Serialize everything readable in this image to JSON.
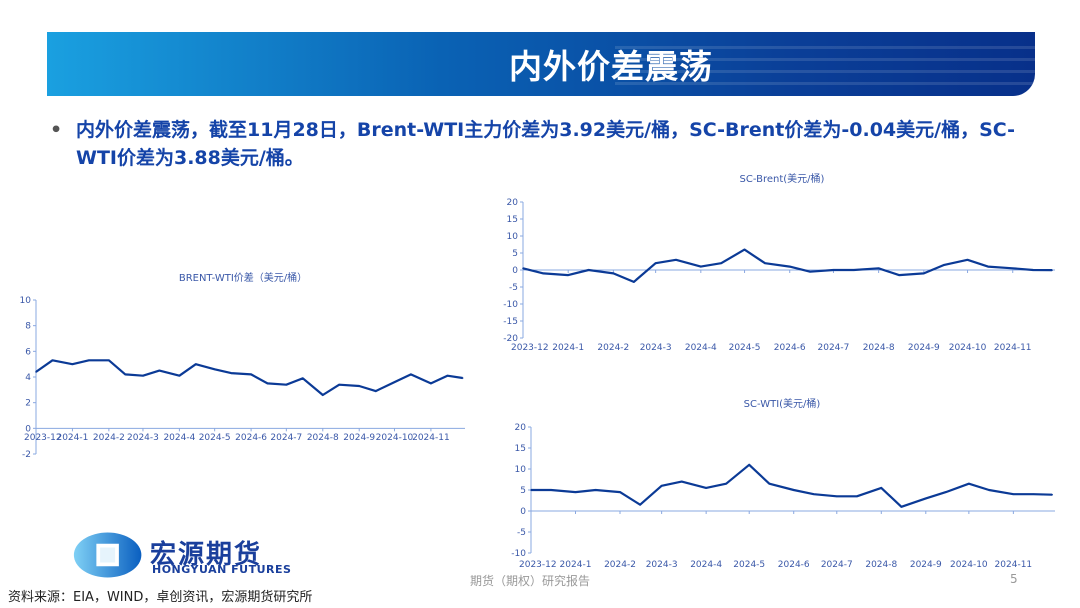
{
  "header": {
    "title": "内外价差震荡"
  },
  "bullet": {
    "text": "内外价差震荡，截至11月28日，Brent-WTI主力价差为3.92美元/桶，SC-Brent价差为-0.04美元/桶，SC-WTI价差为3.88美元/桶。"
  },
  "logo": {
    "name": "宏源期货",
    "english": "HONGYUAN FUTURES"
  },
  "source": "资料来源：EIA，WIND，卓创资讯，宏源期货研究所",
  "footer": {
    "text": "期货（期权）研究报告",
    "page": "5"
  },
  "colors": {
    "line": "#0b3a96",
    "axis": "#8aa8e0",
    "text": "#3a58a8",
    "banner_start": "#1aa0e0",
    "banner_end": "#08308a"
  },
  "chart_data": [
    {
      "type": "line",
      "title": "BRENT-WTI价差（美元/桶）",
      "ylim": [
        -2,
        10
      ],
      "yticks": [
        -2,
        0,
        2,
        4,
        6,
        8,
        10
      ],
      "xticks": [
        "2023-12",
        "2024-1",
        "2024-2",
        "2024-3",
        "2024-4",
        "2024-5",
        "2024-6",
        "2024-7",
        "2024-8",
        "2024-9",
        "2024-10",
        "2024-11"
      ],
      "x": [
        "2023-12-01",
        "2023-12-15",
        "2024-01-01",
        "2024-01-15",
        "2024-02-01",
        "2024-02-15",
        "2024-03-01",
        "2024-03-15",
        "2024-04-01",
        "2024-04-15",
        "2024-05-01",
        "2024-05-15",
        "2024-06-01",
        "2024-06-15",
        "2024-07-01",
        "2024-07-15",
        "2024-08-01",
        "2024-08-15",
        "2024-09-01",
        "2024-09-15",
        "2024-10-01",
        "2024-10-15",
        "2024-11-01",
        "2024-11-15",
        "2024-11-28"
      ],
      "values": [
        4.4,
        5.3,
        5.0,
        5.3,
        5.3,
        4.2,
        4.1,
        4.5,
        4.1,
        5.0,
        4.6,
        4.3,
        4.2,
        3.5,
        3.4,
        3.9,
        2.6,
        3.4,
        3.3,
        2.9,
        3.6,
        4.2,
        3.5,
        4.1,
        3.92
      ]
    },
    {
      "type": "line",
      "title": "SC-Brent(美元/桶)",
      "ylim": [
        -20,
        20
      ],
      "yticks": [
        -20,
        -15,
        -10,
        -5,
        0,
        5,
        10,
        15,
        20
      ],
      "xticks": [
        "2023-12",
        "2024-1",
        "2024-2",
        "2024-3",
        "2024-4",
        "2024-5",
        "2024-6",
        "2024-7",
        "2024-8",
        "2024-9",
        "2024-10",
        "2024-11"
      ],
      "x": [
        "2023-12-01",
        "2023-12-15",
        "2024-01-01",
        "2024-01-15",
        "2024-02-01",
        "2024-02-15",
        "2024-03-01",
        "2024-03-15",
        "2024-04-01",
        "2024-04-15",
        "2024-05-01",
        "2024-05-15",
        "2024-06-01",
        "2024-06-15",
        "2024-07-01",
        "2024-07-15",
        "2024-08-01",
        "2024-08-15",
        "2024-09-01",
        "2024-09-15",
        "2024-10-01",
        "2024-10-15",
        "2024-11-01",
        "2024-11-15",
        "2024-11-28"
      ],
      "values": [
        0.5,
        -1,
        -1.5,
        0,
        -1,
        -3.5,
        2,
        3,
        1,
        2,
        6,
        2,
        1,
        -0.5,
        0,
        0,
        0.5,
        -1.5,
        -1,
        1.5,
        3,
        1,
        0.5,
        0,
        -0.04
      ]
    },
    {
      "type": "line",
      "title": "SC-WTI(美元/桶)",
      "ylim": [
        -10,
        20
      ],
      "yticks": [
        -10,
        -5,
        0,
        5,
        10,
        15,
        20
      ],
      "xticks": [
        "2023-12",
        "2024-1",
        "2024-2",
        "2024-3",
        "2024-4",
        "2024-5",
        "2024-6",
        "2024-7",
        "2024-8",
        "2024-9",
        "2024-10",
        "2024-11"
      ],
      "x": [
        "2023-12-01",
        "2023-12-15",
        "2024-01-01",
        "2024-01-15",
        "2024-02-01",
        "2024-02-15",
        "2024-03-01",
        "2024-03-15",
        "2024-04-01",
        "2024-04-15",
        "2024-05-01",
        "2024-05-15",
        "2024-06-01",
        "2024-06-15",
        "2024-07-01",
        "2024-07-15",
        "2024-08-01",
        "2024-08-15",
        "2024-09-01",
        "2024-09-15",
        "2024-10-01",
        "2024-10-15",
        "2024-11-01",
        "2024-11-15",
        "2024-11-28"
      ],
      "values": [
        5,
        5,
        4.5,
        5,
        4.5,
        1.5,
        6,
        7,
        5.5,
        6.5,
        11,
        6.5,
        5,
        4,
        3.5,
        3.5,
        5.5,
        1,
        3,
        4.5,
        6.5,
        5,
        4,
        4,
        3.88
      ]
    }
  ]
}
